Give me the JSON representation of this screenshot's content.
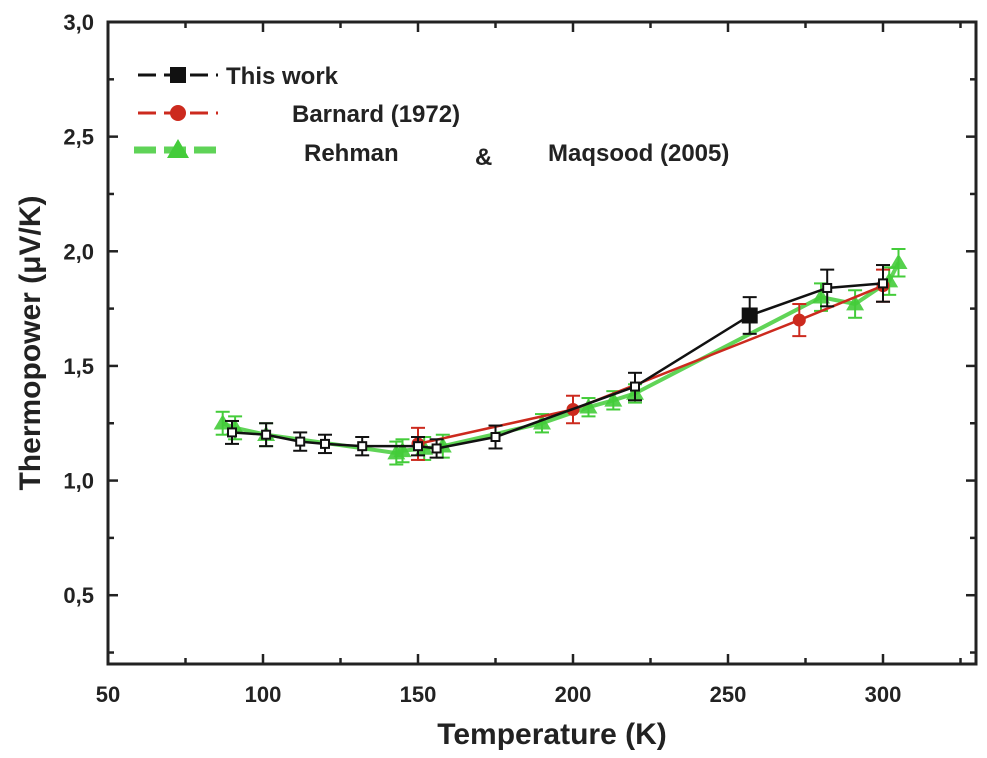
{
  "chart_data": {
    "type": "line",
    "title": "",
    "xlabel": "Temperature (K)",
    "ylabel": "Thermopower (μV/K)",
    "xlim": [
      50,
      330
    ],
    "ylim": [
      0.2,
      3.0
    ],
    "x_ticks": [
      50,
      100,
      150,
      200,
      250,
      300
    ],
    "x_tick_labels": [
      "50",
      "100",
      "150",
      "200",
      "250",
      "300"
    ],
    "y_ticks": [
      0.5,
      1.0,
      1.5,
      2.0,
      2.5,
      3.0
    ],
    "y_tick_labels": [
      "0,5",
      "1,0",
      "1,5",
      "2,0",
      "2,5",
      "3,0"
    ],
    "grid": false,
    "legend_position": "top-left",
    "legend_entries": [
      "This work",
      "Barnard (1972)",
      "Rehman",
      "&",
      "Maqsood (2005)"
    ],
    "series": [
      {
        "name": "This work",
        "color": "#111111",
        "marker": "square",
        "x": [
          90,
          101,
          112,
          120,
          132,
          150,
          156,
          175,
          220,
          257,
          282,
          300
        ],
        "y": [
          1.21,
          1.2,
          1.17,
          1.16,
          1.15,
          1.15,
          1.14,
          1.19,
          1.41,
          1.72,
          1.84,
          1.86
        ],
        "err": [
          0.05,
          0.05,
          0.04,
          0.04,
          0.04,
          0.04,
          0.04,
          0.05,
          0.06,
          0.08,
          0.08,
          0.08
        ]
      },
      {
        "name": "Barnard (1972)",
        "color": "#cc2a1e",
        "marker": "circle",
        "x": [
          150,
          200,
          273,
          300
        ],
        "y": [
          1.16,
          1.31,
          1.7,
          1.85
        ],
        "err": [
          0.07,
          0.06,
          0.07,
          0.07
        ]
      },
      {
        "name": "Rehman & Maqsood (2005)",
        "color": "#44cc3a",
        "marker": "triangle",
        "x": [
          87,
          91,
          101,
          143,
          145,
          152,
          158,
          190,
          205,
          213,
          220,
          280,
          291,
          302,
          305
        ],
        "y": [
          1.25,
          1.23,
          1.2,
          1.12,
          1.13,
          1.14,
          1.15,
          1.25,
          1.32,
          1.35,
          1.38,
          1.8,
          1.77,
          1.87,
          1.95
        ],
        "err": [
          0.05,
          0.05,
          0.05,
          0.05,
          0.05,
          0.05,
          0.05,
          0.04,
          0.04,
          0.04,
          0.04,
          0.06,
          0.06,
          0.06,
          0.06
        ]
      }
    ]
  }
}
